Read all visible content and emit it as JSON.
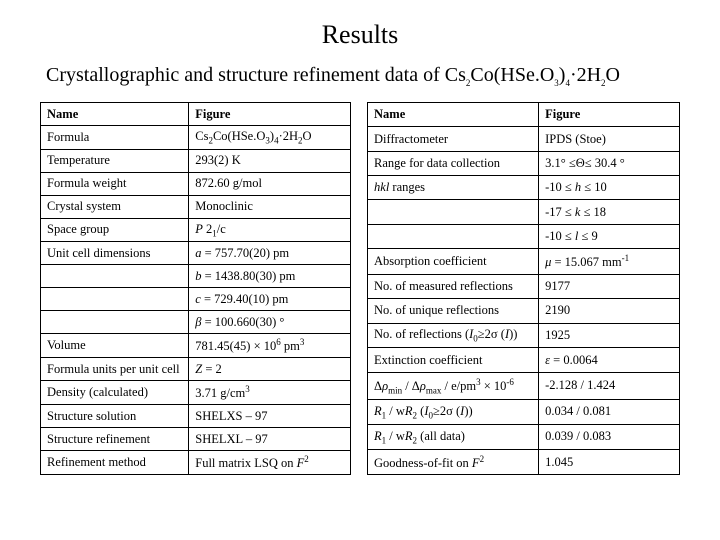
{
  "title": "Results",
  "subtitle_html": "Crystallographic and structure refinement data of Cs<sub>2</sub>Co(HSe.O<sub>3</sub>)<sub>4</sub>·2H<sub>2</sub>O",
  "left": {
    "h1": "Name",
    "h2": "Figure",
    "rows": [
      {
        "a": "Formula",
        "b_html": "Cs<sub>2</sub>Co(HSe.O<sub>3</sub>)<sub>4</sub>·2H<sub>2</sub>O"
      },
      {
        "a": "Temperature",
        "b": "293(2) K"
      },
      {
        "a": "Formula weight",
        "b": "872.60 g/mol"
      },
      {
        "a": "Crystal system",
        "b": "Monoclinic"
      },
      {
        "a": "Space group",
        "b_html": "<span class='ital'>P</span> 2<sub>1</sub>/c"
      },
      {
        "a": "Unit cell dimensions",
        "b_html": "<span class='ital'>a</span> =  757.70(20) pm"
      },
      {
        "a": "",
        "b_html": "<span class='ital'>b</span> = 1438.80(30) pm"
      },
      {
        "a": "",
        "b_html": "<span class='ital'>c</span> =  729.40(10) pm"
      },
      {
        "a": "",
        "b_html": "<span class='ital'>β</span> = 100.660(30) °"
      },
      {
        "a": "Volume",
        "b_html": "781.45(45) × 10<sup>6</sup> pm<sup>3</sup>"
      },
      {
        "a": "Formula units per unit cell",
        "b_html": "<span class='ital'>Z</span> = 2"
      },
      {
        "a": "Density (calculated)",
        "b_html": "3.71 g/cm<sup>3</sup>"
      },
      {
        "a": "Structure solution",
        "b": "SHELXS – 97"
      },
      {
        "a": "Structure refinement",
        "b": "SHELXL – 97"
      },
      {
        "a": "Refinement method",
        "b_html": "Full matrix LSQ on <span class='ital'>F</span><sup>2</sup>"
      }
    ]
  },
  "right": {
    "h1": "Name",
    "h2": "Figure",
    "rows": [
      {
        "a": "Diffractometer",
        "b": "IPDS (Stoe)"
      },
      {
        "a": "Range for data collection",
        "b_html": "3.1° ≤Θ≤ 30.4 °"
      },
      {
        "a_html": "<span class='ital'>hkl</span> ranges",
        "b_html": "-10 ≤ <span class='ital'>h</span> ≤ 10"
      },
      {
        "a": "",
        "b_html": "-17 ≤ <span class='ital'>k</span> ≤ 18"
      },
      {
        "a": "",
        "b_html": "-10 ≤ <span class='ital'>l</span> ≤ 9"
      },
      {
        "a": "Absorption coefficient",
        "b_html": "<span class='ital'>μ</span> = 15.067 mm<sup>-1</sup>"
      },
      {
        "a": "No. of measured reflections",
        "b": "9177"
      },
      {
        "a": "No. of unique reflections",
        "b": "2190"
      },
      {
        "a_html": "No. of reflections (<span class='ital'>I</span><sub>0</sub>≥2σ (<span class='ital'>I</span>))",
        "b": "1925"
      },
      {
        "a": "Extinction coefficient",
        "b_html": "<span class='ital'>ε</span> = 0.0064"
      },
      {
        "a_html": "Δ<span class='ital'>ρ</span><sub>min</sub> / Δ<span class='ital'>ρ</span><sub>max</sub> / e/pm<sup>3</sup> × 10<sup>-6</sup>",
        "b": "-2.128 / 1.424"
      },
      {
        "a_html": "<span class='ital'>R</span><sub>1</sub> / w<span class='ital'>R</span><sub>2</sub> (<span class='ital'>I</span><sub>0</sub>≥2σ (<span class='ital'>I</span>))",
        "b": "0.034 / 0.081"
      },
      {
        "a_html": "<span class='ital'>R</span><sub>1</sub> / w<span class='ital'>R</span><sub>2</sub> (all data)",
        "b": "0.039 / 0.083"
      },
      {
        "a_html": "Goodness-of-fit on <span class='ital'>F</span><sup>2</sup>",
        "b": "1.045"
      }
    ]
  }
}
